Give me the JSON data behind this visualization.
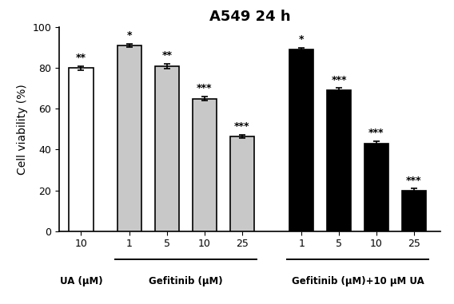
{
  "title": "A549 24 h",
  "ylabel": "Cell viability (%)",
  "ylim": [
    0,
    100
  ],
  "yticks": [
    0,
    20,
    40,
    60,
    80,
    100
  ],
  "bar_values": [
    80,
    91,
    81,
    65,
    46.5,
    89,
    69,
    43,
    20
  ],
  "bar_errors": [
    1.0,
    0.8,
    1.2,
    1.0,
    0.8,
    1.0,
    1.2,
    1.0,
    0.8
  ],
  "bar_colors": [
    "#ffffff",
    "#c8c8c8",
    "#c8c8c8",
    "#c8c8c8",
    "#c8c8c8",
    "#000000",
    "#000000",
    "#000000",
    "#000000"
  ],
  "bar_edgecolors": [
    "#000000",
    "#000000",
    "#000000",
    "#000000",
    "#000000",
    "#000000",
    "#000000",
    "#000000",
    "#000000"
  ],
  "significance": [
    "**",
    "*",
    "**",
    "***",
    "***",
    "*",
    "***",
    "***",
    "***"
  ],
  "x_tick_labels": [
    "10",
    "1",
    "5",
    "10",
    "25",
    "1",
    "5",
    "10",
    "25"
  ],
  "group_labels": [
    "UA (μM)",
    "Gefitinib (μM)",
    "Gefitinib (μM)+10 μM UA"
  ],
  "bar_width": 0.55,
  "background_color": "#ffffff",
  "title_fontsize": 13,
  "label_fontsize": 10,
  "tick_fontsize": 9,
  "sig_fontsize": 9
}
